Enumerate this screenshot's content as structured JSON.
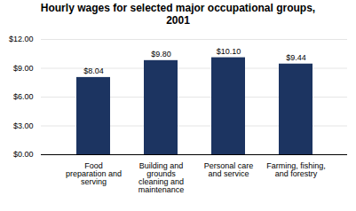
{
  "chart_data": {
    "type": "bar",
    "title": "Hourly wages for selected major occupational groups,\n2001",
    "categories": [
      "Food\npreparation and\nserving",
      "Building and\ngrounds\ncleaning and\nmaintenance",
      "Personal care\nand service",
      "Farming, fishing,\nand forestry"
    ],
    "values": [
      8.04,
      9.8,
      10.1,
      9.44
    ],
    "value_labels": [
      "$8.04",
      "$9.80",
      "$10.10",
      "$9.44"
    ],
    "data_labels": true,
    "color": "#1c3461",
    "ylim": [
      0,
      12
    ],
    "yticks": [
      {
        "value": 0,
        "label": "$0.00"
      },
      {
        "value": 3,
        "label": "$3.00"
      },
      {
        "value": 6,
        "label": "$6.00"
      },
      {
        "value": 9,
        "label": "$9.00"
      },
      {
        "value": 12,
        "label": "$12.00"
      }
    ],
    "grid": true
  }
}
